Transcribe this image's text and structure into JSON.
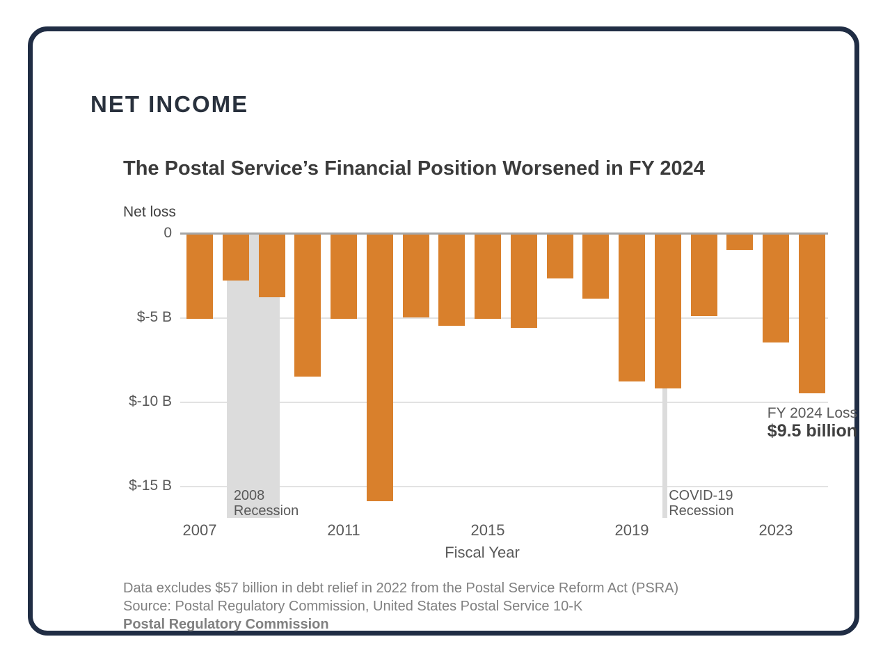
{
  "header": {
    "title": "NET INCOME"
  },
  "chart": {
    "title": "The Postal Service’s Financial Position Worsened in FY 2024",
    "y_axis_title": "Net loss",
    "x_axis_title": "Fiscal Year"
  },
  "chart_data": {
    "type": "bar",
    "title": "The Postal Service’s Financial Position Worsened in FY 2024",
    "xlabel": "Fiscal Year",
    "ylabel": "Net loss",
    "unit": "billions of dollars",
    "categories": [
      "2007",
      "2008",
      "2009",
      "2010",
      "2011",
      "2012",
      "2013",
      "2014",
      "2015",
      "2016",
      "2017",
      "2018",
      "2019",
      "2020",
      "2021",
      "2022",
      "2023",
      "2024"
    ],
    "values": [
      -5.1,
      -2.8,
      -3.8,
      -8.5,
      -5.1,
      -15.9,
      -5.0,
      -5.5,
      -5.1,
      -5.6,
      -2.7,
      -3.9,
      -8.8,
      -9.2,
      -4.9,
      -1.0,
      -6.5,
      -9.5
    ],
    "x_ticks": [
      "2007",
      "2011",
      "2015",
      "2019",
      "2023"
    ],
    "y_ticks": [
      {
        "label": "0",
        "value": 0
      },
      {
        "label": "$-5 B",
        "value": -5
      },
      {
        "label": "$-10 B",
        "value": -10
      },
      {
        "label": "$-15 B",
        "value": -15
      }
    ],
    "ylim": [
      -17,
      0
    ],
    "grid": "horizontal",
    "legend": "none",
    "bar_color": "#D9802C",
    "recession_bands": [
      {
        "name": "2008-recession",
        "label_line1": "2008",
        "label_line2": "Recession",
        "x_start_year": 2007.75,
        "x_end_year": 2009.22
      },
      {
        "name": "covid-19-recession",
        "label_line1": "COVID-19",
        "label_line2": "Recession",
        "x_start_year": 2019.85,
        "x_end_year": 2019.99
      }
    ]
  },
  "annotations": {
    "fy2024_loss": {
      "line1": "FY 2024 Loss",
      "line2": "$9.5 billion"
    }
  },
  "footer": {
    "note": "Data excludes $57 billion in debt relief in 2022 from the Postal Service Reform Act (PSRA)",
    "source": "Source: Postal Regulatory Commission, United States Postal Service 10-K",
    "org": "Postal Regulatory Commission"
  },
  "colors": {
    "bar": "#D9802C",
    "recession_band": "#DCDCDC",
    "axis_text": "#595959",
    "zero_line": "#A6A6A6",
    "gridline": "#E2E2E2",
    "card_border": "#202D44",
    "header_text": "#29313D",
    "title_text": "#3B3B3B"
  }
}
